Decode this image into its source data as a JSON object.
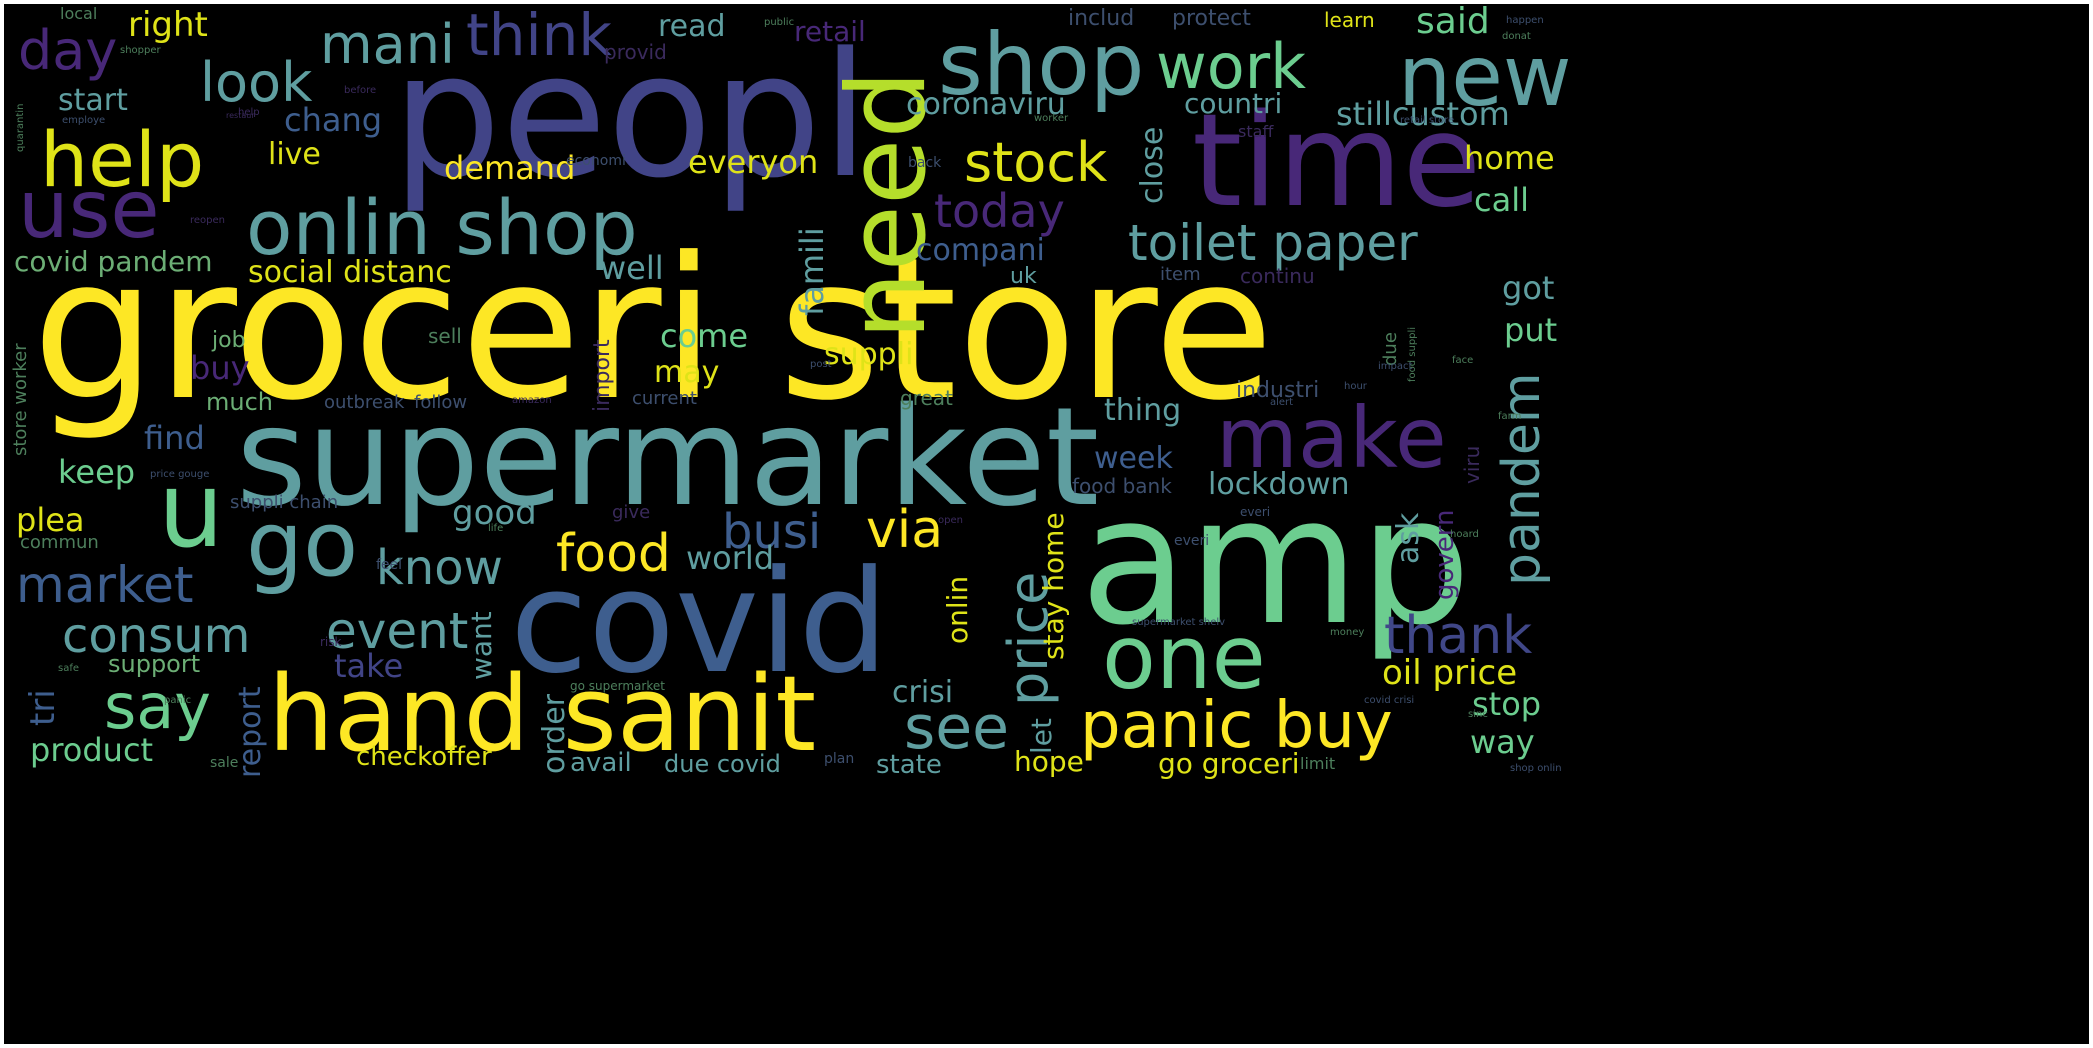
{
  "palette": {
    "yellow": "#fde725",
    "yellow_green": "#dfe318",
    "light_green": "#b5de2b",
    "green": "#5ec962",
    "sea_green": "#6ccd8f",
    "teal_green": "#35b779",
    "teal": "#2a9d8f",
    "slate_teal": "#5f9ea0",
    "steel_blue": "#3e5e8e",
    "indigo": "#404788",
    "blue_purple": "#414487",
    "purple": "#482878",
    "dark_purple": "#3e2163",
    "muted_green": "#6cae75",
    "dim_green": "#4d7f5c",
    "dim_blue": "#3d4f6e",
    "dim_purple": "#3a2a5c"
  },
  "words": [
    {
      "text": "groceri store",
      "color": "yellow"
    },
    {
      "text": "peopl",
      "color": "blue_purple"
    },
    {
      "text": "supermarket",
      "color": "slate_teal"
    },
    {
      "text": "amp",
      "color": "sea_green"
    },
    {
      "text": "covid",
      "color": "steel_blue"
    },
    {
      "text": "time",
      "color": "purple"
    },
    {
      "text": "hand sanit",
      "color": "yellow"
    },
    {
      "text": "need",
      "color": "light_green"
    },
    {
      "text": "shop",
      "color": "slate_teal"
    },
    {
      "text": "onlin shop",
      "color": "slate_teal"
    },
    {
      "text": "new",
      "color": "slate_teal"
    },
    {
      "text": "one",
      "color": "sea_green"
    },
    {
      "text": "go",
      "color": "slate_teal"
    },
    {
      "text": "u",
      "color": "sea_green"
    },
    {
      "text": "help",
      "color": "yellow_green"
    },
    {
      "text": "use",
      "color": "purple"
    },
    {
      "text": "make",
      "color": "purple"
    },
    {
      "text": "panic buy",
      "color": "yellow"
    },
    {
      "text": "work",
      "color": "sea_green"
    },
    {
      "text": "think",
      "color": "blue_purple"
    },
    {
      "text": "mani",
      "color": "slate_teal"
    },
    {
      "text": "say",
      "color": "sea_green"
    },
    {
      "text": "see",
      "color": "slate_teal"
    },
    {
      "text": "price",
      "color": "slate_teal"
    },
    {
      "text": "food",
      "color": "yellow"
    },
    {
      "text": "stock",
      "color": "yellow_green"
    },
    {
      "text": "toilet paper",
      "color": "slate_teal"
    },
    {
      "text": "look",
      "color": "slate_teal"
    },
    {
      "text": "market",
      "color": "steel_blue"
    },
    {
      "text": "consum",
      "color": "slate_teal"
    },
    {
      "text": "event",
      "color": "slate_teal"
    },
    {
      "text": "know",
      "color": "slate_teal"
    },
    {
      "text": "busi",
      "color": "steel_blue"
    },
    {
      "text": "via",
      "color": "yellow"
    },
    {
      "text": "today",
      "color": "purple"
    },
    {
      "text": "pandem",
      "color": "slate_teal"
    },
    {
      "text": "thank",
      "color": "indigo"
    },
    {
      "text": "day",
      "color": "purple"
    },
    {
      "text": "social distanc",
      "color": "yellow_green"
    },
    {
      "text": "covid pandem",
      "color": "muted_green"
    },
    {
      "text": "right",
      "color": "yellow_green"
    },
    {
      "text": "start",
      "color": "slate_teal"
    },
    {
      "text": "chang",
      "color": "steel_blue"
    },
    {
      "text": "live",
      "color": "yellow_green"
    },
    {
      "text": "demand",
      "color": "yellow"
    },
    {
      "text": "everyon",
      "color": "yellow_green"
    },
    {
      "text": "read",
      "color": "slate_teal"
    },
    {
      "text": "retail",
      "color": "purple"
    },
    {
      "text": "coronaviru",
      "color": "slate_teal"
    },
    {
      "text": "countri",
      "color": "slate_teal"
    },
    {
      "text": "stillcustom",
      "color": "slate_teal"
    },
    {
      "text": "home",
      "color": "yellow_green"
    },
    {
      "text": "call",
      "color": "sea_green"
    },
    {
      "text": "said",
      "color": "sea_green"
    },
    {
      "text": "compani",
      "color": "steel_blue"
    },
    {
      "text": "well",
      "color": "slate_teal"
    },
    {
      "text": "famili",
      "color": "slate_teal"
    },
    {
      "text": "close",
      "color": "slate_teal"
    },
    {
      "text": "got",
      "color": "slate_teal"
    },
    {
      "text": "put",
      "color": "sea_green"
    },
    {
      "text": "come",
      "color": "sea_green"
    },
    {
      "text": "suppli",
      "color": "yellow_green"
    },
    {
      "text": "may",
      "color": "yellow_green"
    },
    {
      "text": "buy",
      "color": "purple"
    },
    {
      "text": "job",
      "color": "muted_green"
    },
    {
      "text": "sell",
      "color": "dim_green"
    },
    {
      "text": "much",
      "color": "muted_green"
    },
    {
      "text": "find",
      "color": "steel_blue"
    },
    {
      "text": "keep",
      "color": "sea_green"
    },
    {
      "text": "plea",
      "color": "yellow_green"
    },
    {
      "text": "good",
      "color": "slate_teal"
    },
    {
      "text": "world",
      "color": "slate_teal"
    },
    {
      "text": "thing",
      "color": "slate_teal"
    },
    {
      "text": "week",
      "color": "steel_blue"
    },
    {
      "text": "lockdown",
      "color": "slate_teal"
    },
    {
      "text": "food bank",
      "color": "dim_blue"
    },
    {
      "text": "ask",
      "color": "slate_teal"
    },
    {
      "text": "govern",
      "color": "purple"
    },
    {
      "text": "stay home",
      "color": "yellow_green"
    },
    {
      "text": "onlin",
      "color": "yellow_green"
    },
    {
      "text": "want",
      "color": "slate_teal"
    },
    {
      "text": "take",
      "color": "blue_purple"
    },
    {
      "text": "oil price",
      "color": "yellow_green"
    },
    {
      "text": "stop",
      "color": "sea_green"
    },
    {
      "text": "way",
      "color": "sea_green"
    },
    {
      "text": "crisi",
      "color": "slate_teal"
    },
    {
      "text": "let",
      "color": "slate_teal"
    },
    {
      "text": "order",
      "color": "slate_teal"
    },
    {
      "text": "report",
      "color": "steel_blue"
    },
    {
      "text": "tri",
      "color": "steel_blue"
    },
    {
      "text": "product",
      "color": "sea_green"
    },
    {
      "text": "support",
      "color": "muted_green"
    },
    {
      "text": "checkoffer",
      "color": "yellow_green"
    },
    {
      "text": "avail",
      "color": "slate_teal"
    },
    {
      "text": "due covid",
      "color": "slate_teal"
    },
    {
      "text": "state",
      "color": "slate_teal"
    },
    {
      "text": "hope",
      "color": "yellow_green"
    },
    {
      "text": "go groceri",
      "color": "yellow_green"
    },
    {
      "text": "includ",
      "color": "dim_blue"
    },
    {
      "text": "protect",
      "color": "dim_blue"
    },
    {
      "text": "learn",
      "color": "yellow_green"
    },
    {
      "text": "provid",
      "color": "dim_purple"
    },
    {
      "text": "local",
      "color": "dim_green"
    },
    {
      "text": "store worker",
      "color": "dim_green"
    },
    {
      "text": "outbreak",
      "color": "dim_blue"
    },
    {
      "text": "follow",
      "color": "dim_blue"
    },
    {
      "text": "great",
      "color": "dim_green"
    },
    {
      "text": "current",
      "color": "dim_blue"
    },
    {
      "text": "industri",
      "color": "dim_blue"
    },
    {
      "text": "item",
      "color": "dim_blue"
    },
    {
      "text": "continu",
      "color": "dim_purple"
    },
    {
      "text": "uk",
      "color": "slate_teal"
    },
    {
      "text": "import",
      "color": "dim_purple"
    },
    {
      "text": "due",
      "color": "dim_green"
    },
    {
      "text": "suppli chain",
      "color": "dim_blue"
    },
    {
      "text": "give",
      "color": "dim_purple"
    },
    {
      "text": "commun",
      "color": "dim_green"
    },
    {
      "text": "viru",
      "color": "dim_purple"
    },
    {
      "text": "economi",
      "color": "dim_blue"
    },
    {
      "text": "staff",
      "color": "dim_purple"
    },
    {
      "text": "everi",
      "color": "dim_blue"
    },
    {
      "text": "limit",
      "color": "dim_green"
    },
    {
      "text": "sale",
      "color": "dim_green"
    },
    {
      "text": "feel",
      "color": "dim_blue"
    },
    {
      "text": "risk",
      "color": "dim_purple"
    },
    {
      "text": "back",
      "color": "dim_blue"
    },
    {
      "text": "shopper",
      "color": "dim_green"
    },
    {
      "text": "employe",
      "color": "dim_blue"
    },
    {
      "text": "public",
      "color": "dim_green"
    },
    {
      "text": "help",
      "color": "dim_purple"
    },
    {
      "text": "retail store",
      "color": "dim_blue"
    },
    {
      "text": "go supermarket",
      "color": "dim_green"
    },
    {
      "text": "supermarket shelv",
      "color": "dim_blue"
    },
    {
      "text": "covid crisi",
      "color": "dim_blue"
    },
    {
      "text": "shop onlin",
      "color": "dim_blue"
    },
    {
      "text": "money",
      "color": "dim_green"
    },
    {
      "text": "happen",
      "color": "dim_blue"
    },
    {
      "text": "donat",
      "color": "dim_green"
    },
    {
      "text": "food suppli",
      "color": "dim_green"
    },
    {
      "text": "face",
      "color": "dim_green"
    },
    {
      "text": "amazon",
      "color": "dim_purple"
    },
    {
      "text": "reopen",
      "color": "dim_purple"
    },
    {
      "text": "quarantin",
      "color": "dim_green"
    },
    {
      "text": "safe",
      "color": "dim_green"
    },
    {
      "text": "everi",
      "color": "dim_blue"
    },
    {
      "text": "price gouge",
      "color": "dim_blue"
    },
    {
      "text": "restaur",
      "color": "dim_purple"
    },
    {
      "text": "before",
      "color": "dim_purple"
    },
    {
      "text": "worker",
      "color": "dim_green"
    },
    {
      "text": "hour",
      "color": "dim_blue"
    },
    {
      "text": "plan",
      "color": "dim_blue"
    },
    {
      "text": "panic",
      "color": "dim_green"
    },
    {
      "text": "impact",
      "color": "dim_blue"
    },
    {
      "text": "post",
      "color": "dim_blue"
    },
    {
      "text": "life",
      "color": "dim_green"
    },
    {
      "text": "sinc",
      "color": "dim_green"
    },
    {
      "text": "farm",
      "color": "dim_green"
    },
    {
      "text": "open",
      "color": "dim_purple"
    },
    {
      "text": "alert",
      "color": "dim_blue"
    },
    {
      "text": "hoard",
      "color": "dim_green"
    }
  ]
}
